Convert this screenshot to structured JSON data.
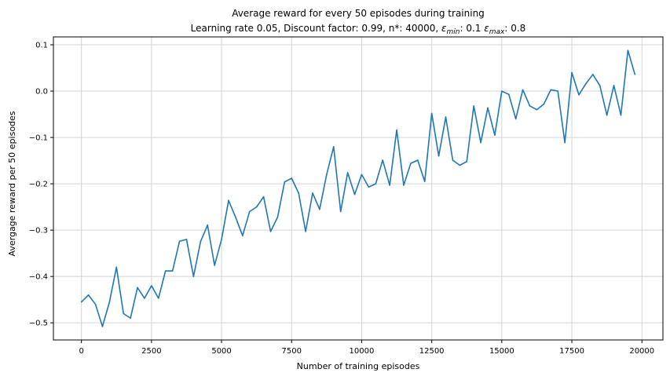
{
  "chart_data": {
    "type": "line",
    "title": "Average reward for every 50 episodes during training",
    "subtitle": {
      "prefix": "Learning rate 0.05, Discount factor: 0.99, n*: 40000, ",
      "eps_symbol": "ε",
      "min_sub": "min",
      "min_value": ": 0.1 ",
      "max_sub": "max",
      "max_value": ": 0.8"
    },
    "xlabel": "Number of training episodes",
    "ylabel": "Avergage reward per 50 episodes",
    "xlim": [
      -1000,
      20750
    ],
    "ylim": [
      -0.537,
      0.117
    ],
    "x_ticks": [
      0,
      2500,
      5000,
      7500,
      10000,
      12500,
      15000,
      17500,
      20000
    ],
    "x_tick_labels": [
      "0",
      "2500",
      "5000",
      "7500",
      "10000",
      "12500",
      "15000",
      "17500",
      "20000"
    ],
    "y_ticks": [
      -0.5,
      -0.4,
      -0.3,
      -0.2,
      -0.1,
      0.0,
      0.1
    ],
    "y_tick_labels": [
      "−0.5",
      "−0.4",
      "−0.3",
      "−0.2",
      "−0.1",
      "0.0",
      "0.1"
    ],
    "grid": true,
    "line_color": "#1f77b4",
    "series": [
      {
        "x": [
          0,
          250,
          500,
          750,
          1000,
          1250,
          1500,
          1750,
          2000,
          2250,
          2500,
          2750,
          3000,
          3250,
          3500,
          3750,
          4000,
          4250,
          4500,
          4750,
          5000,
          5250,
          5500,
          5750,
          6000,
          6250,
          6500,
          6750,
          7000,
          7250,
          7500,
          7750,
          8000,
          8250,
          8500,
          8750,
          9000,
          9250,
          9500,
          9750,
          10000,
          10250,
          10500,
          10750,
          11000,
          11250,
          11500,
          11750,
          12000,
          12250,
          12500,
          12750,
          13000,
          13250,
          13500,
          13750,
          14000,
          14250,
          14500,
          14750,
          15000,
          15250,
          15500,
          15750,
          16000,
          16250,
          16500,
          16750,
          17000,
          17250,
          17500,
          17750,
          18000,
          18250,
          18500,
          18750,
          19000,
          19250,
          19500,
          19750
        ],
        "values": [
          -0.455,
          -0.44,
          -0.46,
          -0.508,
          -0.455,
          -0.38,
          -0.48,
          -0.49,
          -0.424,
          -0.447,
          -0.42,
          -0.447,
          -0.388,
          -0.388,
          -0.324,
          -0.32,
          -0.4,
          -0.325,
          -0.289,
          -0.376,
          -0.32,
          -0.236,
          -0.272,
          -0.312,
          -0.26,
          -0.25,
          -0.228,
          -0.303,
          -0.272,
          -0.196,
          -0.188,
          -0.22,
          -0.303,
          -0.22,
          -0.255,
          -0.18,
          -0.12,
          -0.26,
          -0.176,
          -0.223,
          -0.18,
          -0.207,
          -0.2,
          -0.149,
          -0.203,
          -0.084,
          -0.203,
          -0.156,
          -0.149,
          -0.195,
          -0.048,
          -0.14,
          -0.056,
          -0.149,
          -0.16,
          -0.152,
          -0.032,
          -0.111,
          -0.036,
          -0.095,
          0.0,
          -0.007,
          -0.06,
          0.003,
          -0.032,
          -0.04,
          -0.028,
          0.003,
          0.0,
          -0.111,
          0.04,
          -0.008,
          0.016,
          0.036,
          0.012,
          -0.052,
          0.012,
          -0.052,
          0.088,
          0.036
        ]
      }
    ]
  }
}
